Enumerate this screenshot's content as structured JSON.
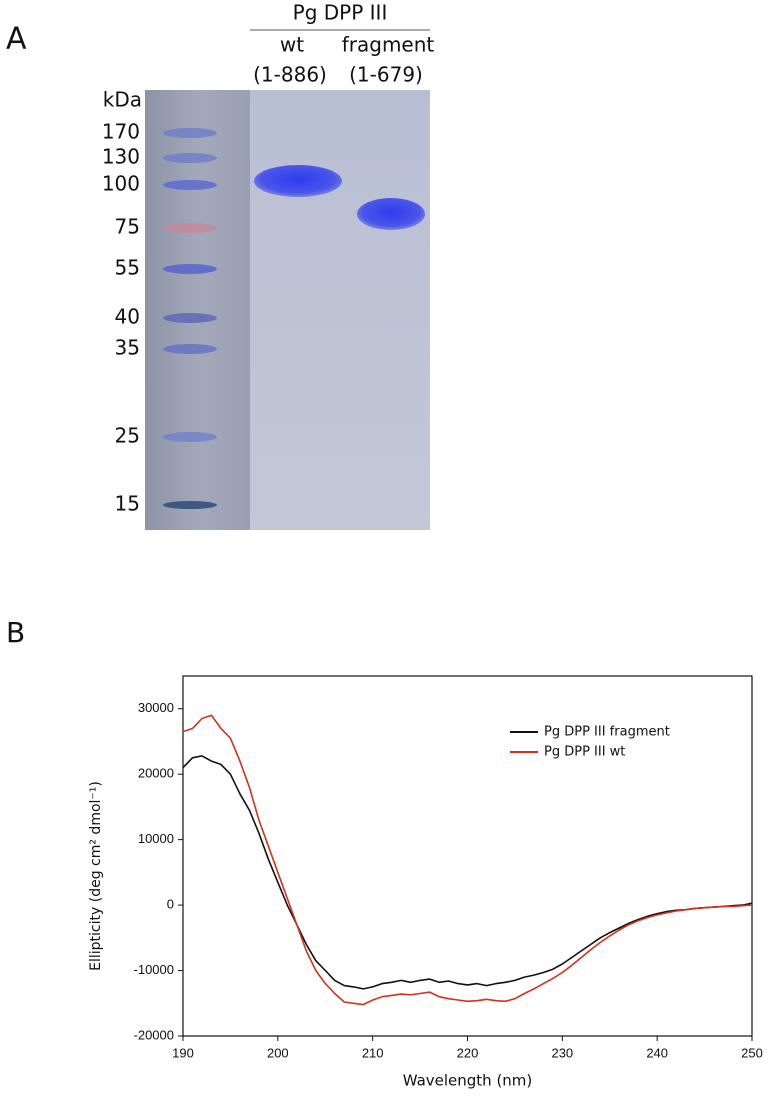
{
  "panel_a": {
    "label": "A",
    "header": "Pg DPP III",
    "lanes": [
      {
        "name": "wt",
        "range": "(1-886)"
      },
      {
        "name": "fragment",
        "range": "(1-679)"
      }
    ],
    "unit": "kDa",
    "markers": [
      "170",
      "130",
      "100",
      "75",
      "55",
      "40",
      "35",
      "25",
      "15"
    ]
  },
  "chart_data": {
    "type": "line",
    "panel_label": "B",
    "x_label": "Wavelength (nm)",
    "y_label": "Ellipticity (deg cm² dmol⁻¹)",
    "x": [
      190,
      191,
      192,
      193,
      194,
      195,
      196,
      197,
      198,
      199,
      200,
      201,
      202,
      203,
      204,
      205,
      206,
      207,
      208,
      209,
      210,
      211,
      212,
      213,
      214,
      215,
      216,
      217,
      218,
      219,
      220,
      221,
      222,
      223,
      224,
      225,
      226,
      227,
      228,
      229,
      230,
      231,
      232,
      233,
      234,
      235,
      236,
      237,
      238,
      239,
      240,
      241,
      242,
      243,
      244,
      245,
      246,
      247,
      248,
      249,
      250
    ],
    "series": [
      {
        "name": "Pg DPP III fragment",
        "color": "#111111",
        "values": [
          21000,
          22500,
          22800,
          22000,
          21500,
          20000,
          17000,
          14500,
          11000,
          7000,
          3500,
          0,
          -3000,
          -6000,
          -8500,
          -10000,
          -11500,
          -12300,
          -12500,
          -12800,
          -12500,
          -12000,
          -11800,
          -11500,
          -11800,
          -11500,
          -11300,
          -11800,
          -11600,
          -12000,
          -12200,
          -12000,
          -12300,
          -12000,
          -11800,
          -11500,
          -11000,
          -10700,
          -10300,
          -9800,
          -9000,
          -8000,
          -7000,
          -6000,
          -5000,
          -4200,
          -3500,
          -2800,
          -2200,
          -1700,
          -1300,
          -1000,
          -800,
          -700,
          -500,
          -400,
          -300,
          -200,
          -100,
          0,
          300
        ]
      },
      {
        "name": "Pg DPP III wt",
        "color": "#d2321e",
        "values": [
          26500,
          27000,
          28500,
          29000,
          27000,
          25500,
          22000,
          18000,
          13000,
          9000,
          5000,
          1000,
          -3000,
          -7000,
          -10000,
          -12000,
          -13500,
          -14800,
          -15000,
          -15200,
          -14500,
          -14000,
          -13800,
          -13600,
          -13700,
          -13500,
          -13300,
          -14000,
          -14300,
          -14500,
          -14700,
          -14600,
          -14400,
          -14600,
          -14700,
          -14300,
          -13500,
          -12800,
          -12000,
          -11200,
          -10300,
          -9200,
          -8000,
          -6800,
          -5700,
          -4700,
          -3800,
          -3000,
          -2400,
          -1900,
          -1500,
          -1200,
          -900,
          -700,
          -500,
          -400,
          -300,
          -200,
          -200,
          -100,
          0
        ]
      }
    ],
    "xlim": [
      190,
      250
    ],
    "xticks": [
      190,
      200,
      210,
      220,
      230,
      240,
      250
    ],
    "ylim": [
      -20000,
      35000
    ],
    "yticks": [
      -20000,
      -10000,
      0,
      10000,
      20000,
      30000
    ],
    "legend": "upper right"
  }
}
